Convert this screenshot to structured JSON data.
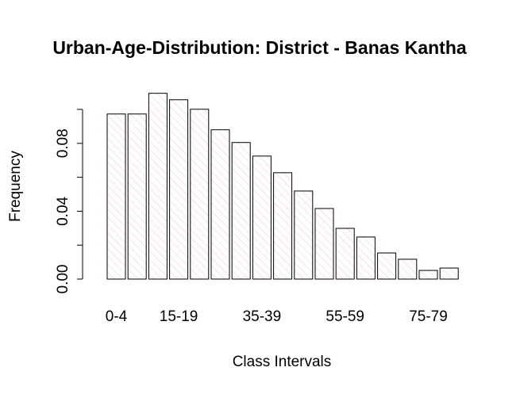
{
  "chart_data": {
    "type": "bar",
    "title": "Urban-Age-Distribution: District - Banas Kantha",
    "x_label": "Class Intervals",
    "y_label": "Frequency",
    "categories": [
      "0-4",
      null,
      null,
      "15-19",
      null,
      null,
      null,
      "35-39",
      null,
      null,
      null,
      "55-59",
      null,
      null,
      null,
      "75-79",
      null
    ],
    "values": [
      0.0973,
      0.0973,
      0.1095,
      0.1057,
      0.1001,
      0.088,
      0.0805,
      0.0725,
      0.0627,
      0.0519,
      0.0416,
      0.0299,
      0.0248,
      0.0154,
      0.0117,
      0.0051,
      0.0065
    ],
    "color": "#f4c6cc",
    "ylim": [
      0,
      0.1
    ],
    "yticks": [
      {
        "value": 0,
        "label": "0.00"
      },
      {
        "value": 0.04,
        "label": "0.04"
      },
      {
        "value": 0.08,
        "label": "0.08"
      }
    ],
    "yminor_ticks": [
      0.02,
      0.06,
      0.1
    ]
  }
}
